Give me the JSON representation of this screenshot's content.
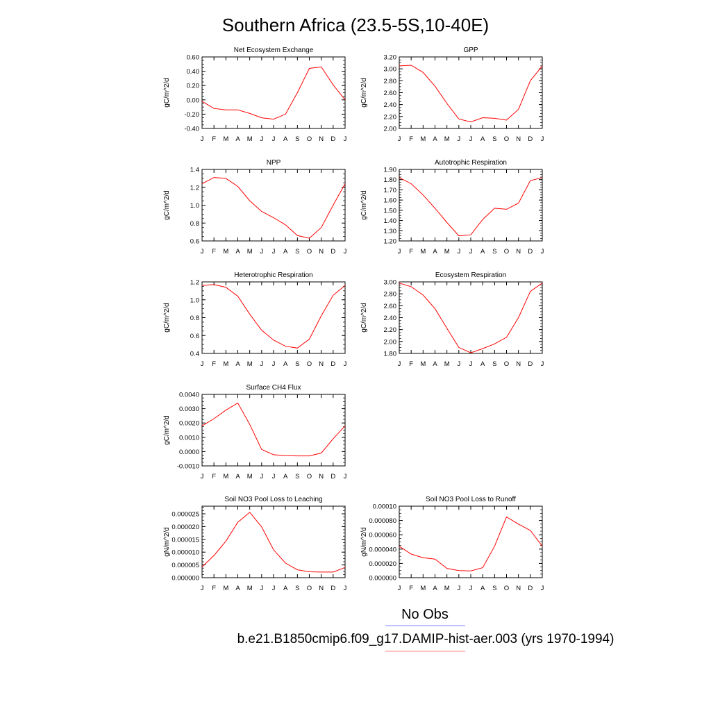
{
  "title": "Southern Africa (23.5-5S,10-40E)",
  "months": [
    "J",
    "F",
    "M",
    "A",
    "M",
    "J",
    "J",
    "A",
    "S",
    "O",
    "N",
    "D",
    "J"
  ],
  "legend": {
    "obs_label": "No Obs",
    "model_label": "b.e21.B1850cmip6.f09_g17.DAMIP-hist-aer.003 (yrs 1970-1994)",
    "obs_color": "#8080ff",
    "model_color": "#ff8080"
  },
  "line_color": "#ff0000",
  "chart_data": [
    {
      "type": "line",
      "title": "Net Ecosystem Exchange",
      "ylabel": "gC/m^2/d",
      "ylim": [
        -0.4,
        0.6
      ],
      "yticks": [
        "-0.40",
        "-0.20",
        "0.00",
        "0.20",
        "0.40",
        "0.60"
      ],
      "values": [
        -0.02,
        -0.12,
        -0.14,
        -0.14,
        -0.19,
        -0.25,
        -0.27,
        -0.2,
        0.1,
        0.44,
        0.46,
        0.21,
        0.0
      ]
    },
    {
      "type": "line",
      "title": "GPP",
      "ylabel": "gC/m^2/d",
      "ylim": [
        2.0,
        3.2
      ],
      "yticks": [
        "2.00",
        "2.20",
        "2.40",
        "2.60",
        "2.80",
        "3.00",
        "3.20"
      ],
      "values": [
        3.05,
        3.06,
        2.94,
        2.71,
        2.42,
        2.16,
        2.11,
        2.18,
        2.17,
        2.14,
        2.32,
        2.8,
        3.05
      ]
    },
    {
      "type": "line",
      "title": "NPP",
      "ylabel": "gC/m^2/d",
      "ylim": [
        0.6,
        1.4
      ],
      "yticks": [
        "0.6",
        "0.8",
        "1.0",
        "1.2",
        "1.4"
      ],
      "values": [
        1.24,
        1.31,
        1.3,
        1.21,
        1.05,
        0.93,
        0.86,
        0.78,
        0.66,
        0.63,
        0.75,
        1.0,
        1.24
      ]
    },
    {
      "type": "line",
      "title": "Autotrophic Respiration",
      "ylabel": "gC/m^2/d",
      "ylim": [
        1.2,
        1.9
      ],
      "yticks": [
        "1.20",
        "1.30",
        "1.40",
        "1.50",
        "1.60",
        "1.70",
        "1.80",
        "1.90"
      ],
      "values": [
        1.82,
        1.76,
        1.65,
        1.52,
        1.38,
        1.25,
        1.26,
        1.41,
        1.52,
        1.51,
        1.57,
        1.79,
        1.82
      ]
    },
    {
      "type": "line",
      "title": "Heterotrophic Respiration",
      "ylabel": "gC/m^2/d",
      "ylim": [
        0.4,
        1.2
      ],
      "yticks": [
        "0.4",
        "0.6",
        "0.8",
        "1.0",
        "1.2"
      ],
      "values": [
        1.16,
        1.17,
        1.14,
        1.04,
        0.84,
        0.66,
        0.55,
        0.48,
        0.46,
        0.56,
        0.82,
        1.05,
        1.16
      ]
    },
    {
      "type": "line",
      "title": "Ecosystem Respiration",
      "ylabel": "gC/m^2/d",
      "ylim": [
        1.8,
        3.0
      ],
      "yticks": [
        "1.80",
        "2.00",
        "2.20",
        "2.40",
        "2.60",
        "2.80",
        "3.00"
      ],
      "values": [
        2.98,
        2.92,
        2.78,
        2.55,
        2.22,
        1.9,
        1.81,
        1.88,
        1.96,
        2.07,
        2.4,
        2.84,
        2.98
      ]
    },
    {
      "type": "line",
      "title": "Surface CH4 Flux",
      "ylabel": "gC/m^2/d",
      "ylim": [
        -0.001,
        0.004
      ],
      "yticks": [
        "-0.0010",
        "0.0000",
        "0.0010",
        "0.0020",
        "0.0030",
        "0.0040"
      ],
      "values": [
        0.0018,
        0.0023,
        0.0029,
        0.0034,
        0.0019,
        0.00015,
        -0.00022,
        -0.00028,
        -0.0003,
        -0.0003,
        -0.0001,
        0.0009,
        0.0018
      ]
    },
    {
      "type": "line",
      "title": "Soil NO3 Pool Loss to Leaching",
      "ylabel": "gN/m^2/d",
      "ylim": [
        0.0,
        2.8e-05
      ],
      "yticks": [
        "0.000000",
        "0.000005",
        "0.000010",
        "0.000015",
        "0.000020",
        "0.000025"
      ],
      "values": [
        4.2e-06,
        8.7e-06,
        1.43e-05,
        2.17e-05,
        2.56e-05,
        1.99e-05,
        1.09e-05,
        5.7e-06,
        3.1e-06,
        2.3e-06,
        2.2e-06,
        2.2e-06,
        4e-06
      ]
    },
    {
      "type": "line",
      "title": "Soil NO3 Pool Loss to Runoff",
      "ylabel": "gN/m^2/d",
      "ylim": [
        0.0,
        0.0001
      ],
      "yticks": [
        "0.000000",
        "0.000020",
        "0.000040",
        "0.000060",
        "0.000080",
        "0.00010"
      ],
      "values": [
        4.4e-05,
        3.3e-05,
        2.8e-05,
        2.6e-05,
        1.3e-05,
        1e-05,
        9.5e-06,
        1.4e-05,
        4.4e-05,
        8.5e-05,
        7.5e-05,
        6.6e-05,
        4.4e-05
      ]
    }
  ]
}
